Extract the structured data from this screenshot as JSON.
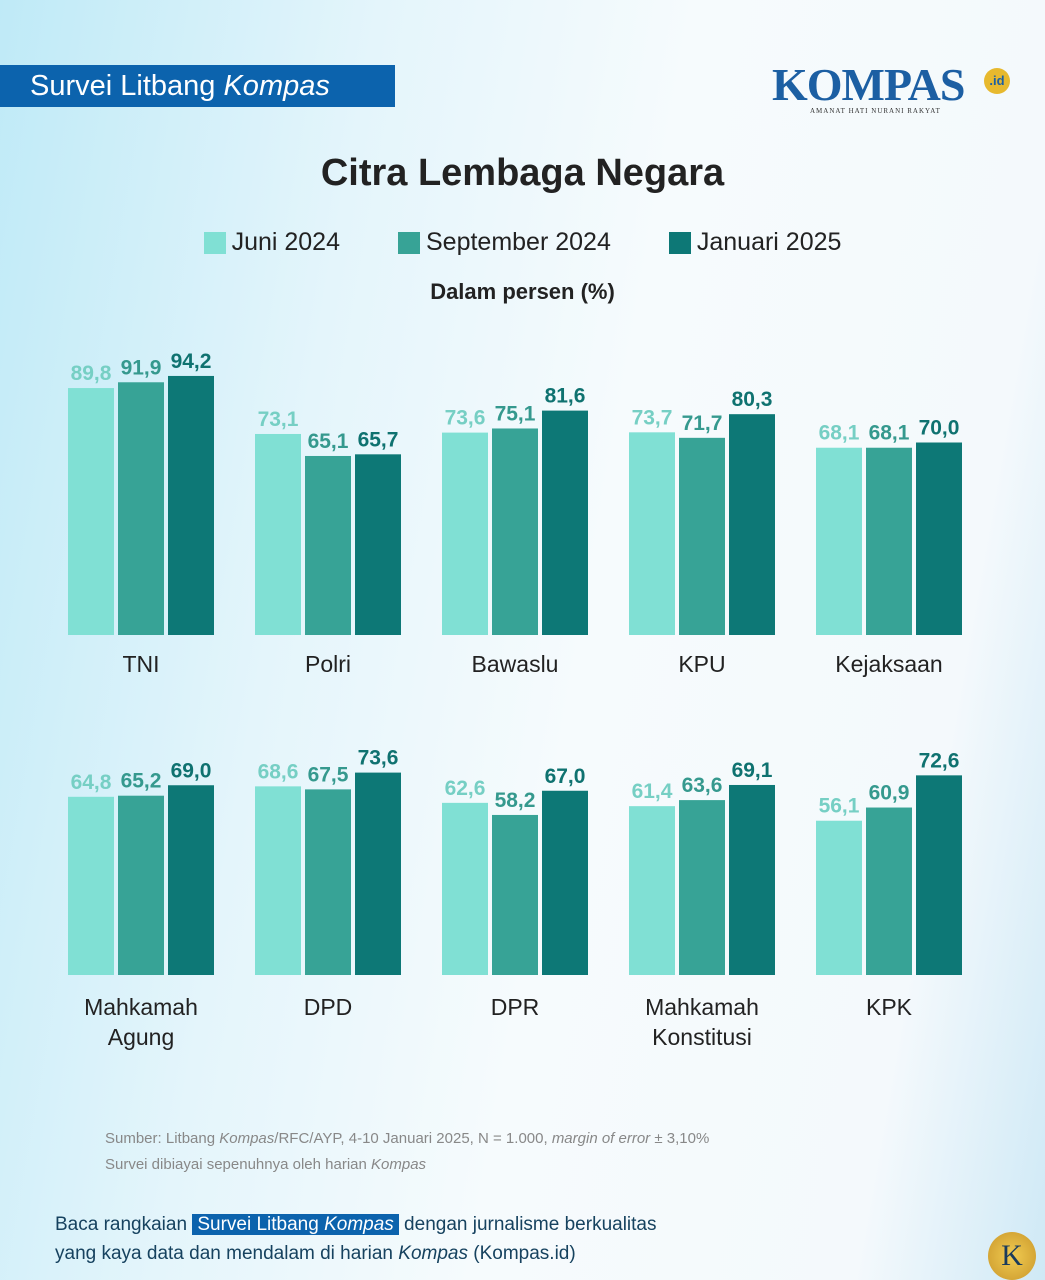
{
  "header": {
    "badge_pre": "Survei Litbang ",
    "badge_em": "Kompas",
    "logo": "KOMPAS",
    "logo_suffix": ".id",
    "logo_tagline": "AMANAT HATI NURANI RAKYAT"
  },
  "chart_data": {
    "type": "bar",
    "title": "Citra Lembaga Negara",
    "subtitle": "Dalam persen (%)",
    "legend_position": "top",
    "grid": false,
    "ylim": [
      0,
      100
    ],
    "categories": [
      "TNI",
      "Polri",
      "Bawaslu",
      "KPU",
      "Kejaksaan",
      "Mahkamah Agung",
      "DPD",
      "DPR",
      "Mahkamah Konstitusi",
      "KPK"
    ],
    "series": [
      {
        "name": "Juni 2024",
        "color": "#80e0d4",
        "label_color": "#76cfc4",
        "values": [
          "89,8",
          "73,1",
          "73,6",
          "73,7",
          "68,1",
          "64,8",
          "68,6",
          "62,6",
          "61,4",
          "56,1"
        ]
      },
      {
        "name": "September 2024",
        "color": "#37a396",
        "label_color": "#35998e",
        "values": [
          "91,9",
          "65,1",
          "75,1",
          "71,7",
          "68,1",
          "65,2",
          "67,5",
          "58,2",
          "63,6",
          "60,9"
        ]
      },
      {
        "name": "Januari 2025",
        "color": "#0d7876",
        "label_color": "#0f7270",
        "values": [
          "94,2",
          "65,7",
          "81,6",
          "80,3",
          "70,0",
          "69,0",
          "73,6",
          "67,0",
          "69,1",
          "72,6"
        ]
      }
    ]
  },
  "source": {
    "line1_a": "Sumber: Litbang ",
    "line1_b": "Kompas",
    "line1_c": "/RFC/AYP, 4-10 Januari 2025, N = 1.000, ",
    "line1_d": "margin of error",
    "line1_e": " ± 3,10%",
    "line2_a": "Survei dibiayai sepenuhnya oleh harian ",
    "line2_b": "Kompas"
  },
  "cta": {
    "a": "Baca rangkaian ",
    "hl_a": "Survei Litbang ",
    "hl_b": "Kompas",
    "b": " dengan jurnalisme berkualitas",
    "c": "yang kaya data dan mendalam di harian ",
    "d": "Kompas",
    "e": " (Kompas.id)"
  },
  "corner_logo": "K"
}
